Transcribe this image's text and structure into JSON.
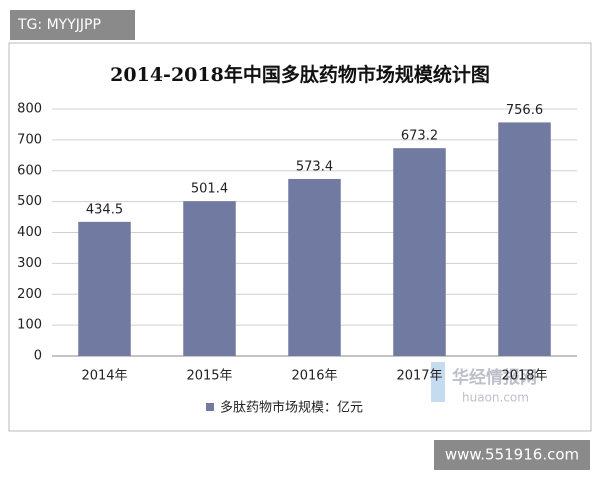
{
  "chart_data": {
    "type": "bar",
    "title": "2014-2018年中国多肽药物市场规模统计图",
    "categories": [
      "2014年",
      "2015年",
      "2016年",
      "2017年",
      "2018年"
    ],
    "series": [
      {
        "name": "多肽药物市场规模：亿元",
        "color": "#717aa1",
        "values": [
          434.5,
          501.4,
          573.4,
          673.2,
          756.6
        ]
      }
    ],
    "ylim": [
      0,
      800
    ],
    "yticks": [
      0,
      100,
      200,
      300,
      400,
      500,
      600,
      700,
      800
    ],
    "grid": true,
    "legend": "bottom"
  },
  "watermarks": {
    "top_left": "TG: MYYJJPP",
    "logo_name": "华经情报网",
    "logo_url": "huaon.com",
    "bottom_right": "www.551916.com"
  }
}
